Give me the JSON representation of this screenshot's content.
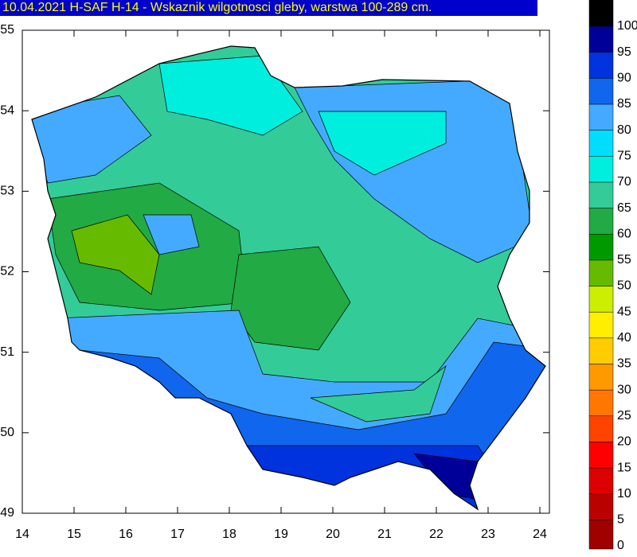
{
  "title": "10.04.2021 H-SAF H-14 - Wskaznik wilgotnosci gleby, warstwa 100-289 cm.",
  "x_axis": {
    "lim": [
      14,
      24
    ],
    "ticks": [
      14,
      15,
      16,
      17,
      18,
      19,
      20,
      21,
      22,
      23,
      24
    ]
  },
  "y_axis": {
    "lim": [
      49,
      55
    ],
    "ticks": [
      49,
      50,
      51,
      52,
      53,
      54,
      55
    ]
  },
  "colorbar": {
    "levels": [
      0,
      5,
      10,
      15,
      20,
      25,
      30,
      35,
      40,
      45,
      50,
      55,
      60,
      65,
      70,
      75,
      80,
      85,
      90,
      95,
      100
    ],
    "colors": [
      "#a00000",
      "#bb0000",
      "#dd0000",
      "#ff0000",
      "#ff4400",
      "#ff7700",
      "#ff9900",
      "#ffcc00",
      "#ffee00",
      "#ccee00",
      "#66bb00",
      "#009900",
      "#22aa44",
      "#33cc99",
      "#00eedd",
      "#00ddff",
      "#44aaff",
      "#1166ee",
      "#0033dd",
      "#000099",
      "#000000"
    ]
  }
}
